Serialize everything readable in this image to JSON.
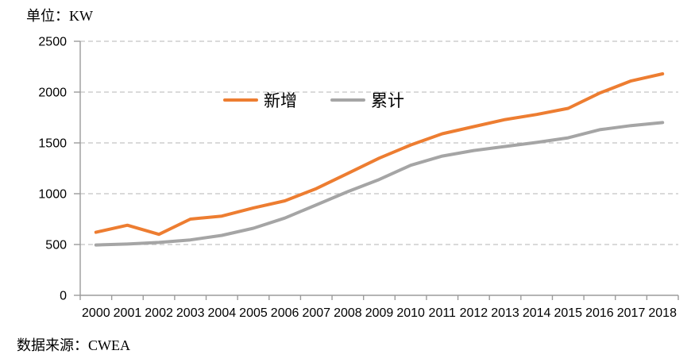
{
  "header": {
    "unit_label": "单位：KW"
  },
  "footer": {
    "source_label": "数据来源：CWEA"
  },
  "colors": {
    "grid": "#c3c3c3",
    "axis": "#9b9b9b",
    "text": "#000000",
    "series_new": "#ED7D31",
    "series_cumulative": "#A5A5A5"
  },
  "chart_data": {
    "type": "line",
    "title": "",
    "xlabel": "",
    "ylabel": "KW",
    "categories": [
      "2000",
      "2001",
      "2002",
      "2003",
      "2004",
      "2005",
      "2006",
      "2007",
      "2008",
      "2009",
      "2010",
      "2011",
      "2012",
      "2013",
      "2014",
      "2015",
      "2016",
      "2017",
      "2018"
    ],
    "series": [
      {
        "id": "new",
        "name": "新增",
        "color": "#ED7D31",
        "values": [
          620,
          690,
          600,
          750,
          780,
          860,
          930,
          1050,
          1200,
          1350,
          1480,
          1590,
          1660,
          1730,
          1780,
          1840,
          1990,
          2110,
          2180
        ]
      },
      {
        "id": "cumulative",
        "name": "累计",
        "color": "#A5A5A5",
        "values": [
          495,
          505,
          520,
          545,
          590,
          660,
          760,
          890,
          1020,
          1140,
          1280,
          1370,
          1425,
          1465,
          1505,
          1550,
          1630,
          1670,
          1700
        ]
      }
    ],
    "ylim": [
      0,
      2500
    ],
    "yticks": [
      0,
      500,
      1000,
      1500,
      2000,
      2500
    ],
    "grid": "horizontal-dashed",
    "legend_position": "top-center"
  }
}
